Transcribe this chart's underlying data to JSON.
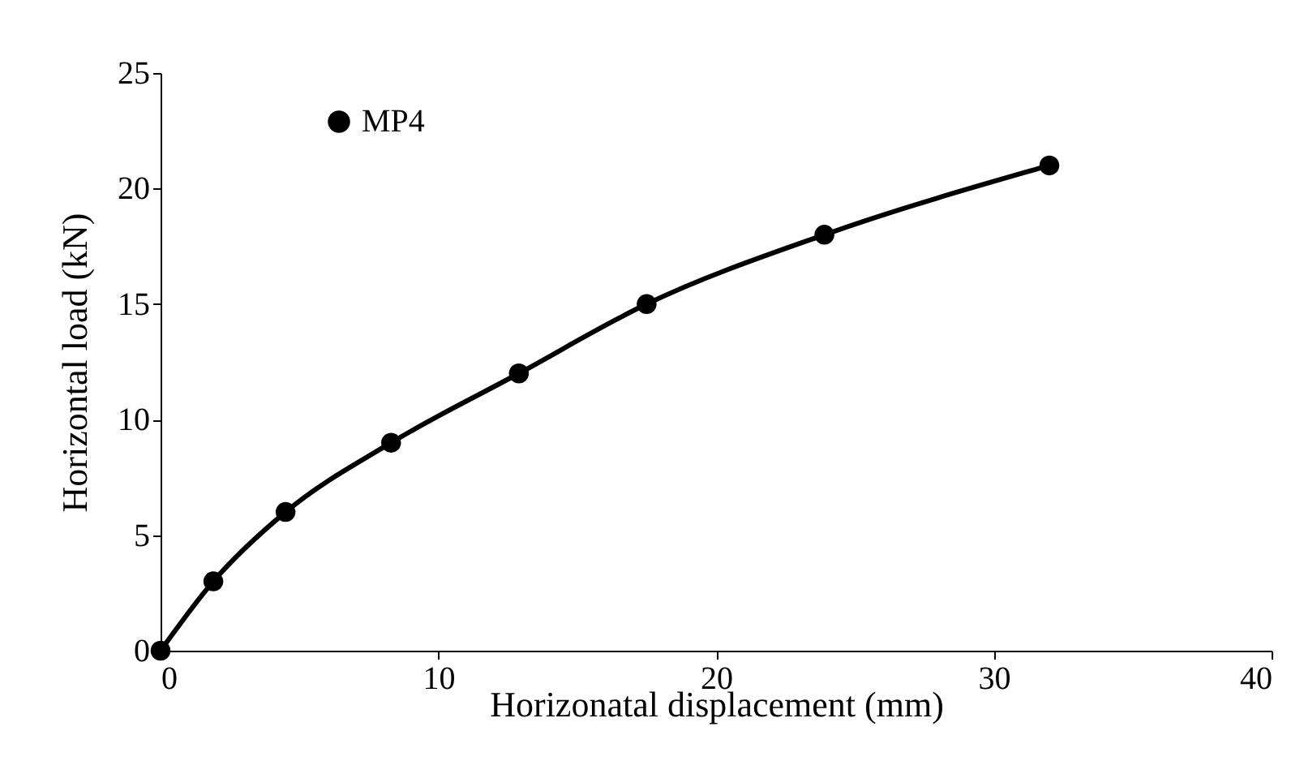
{
  "chart_data": {
    "type": "line",
    "xlabel": "Horizonatal displacement (mm)",
    "ylabel": "Horizontal load (kN)",
    "x": [
      0,
      1.9,
      4.5,
      8.3,
      12.9,
      17.5,
      23.9,
      32.0
    ],
    "series": [
      {
        "name": "MP4",
        "color": "#000000",
        "values": [
          0,
          3,
          6,
          9,
          12,
          15,
          18,
          21
        ]
      }
    ],
    "xlim": [
      0,
      40
    ],
    "xticks": [
      0,
      10,
      20,
      30,
      40
    ],
    "ylim": [
      0,
      25
    ],
    "yticks": [
      0,
      5,
      10,
      15,
      20,
      25
    ],
    "grid": false,
    "legend": "top left",
    "marker": "circle",
    "line_style": "solid"
  }
}
